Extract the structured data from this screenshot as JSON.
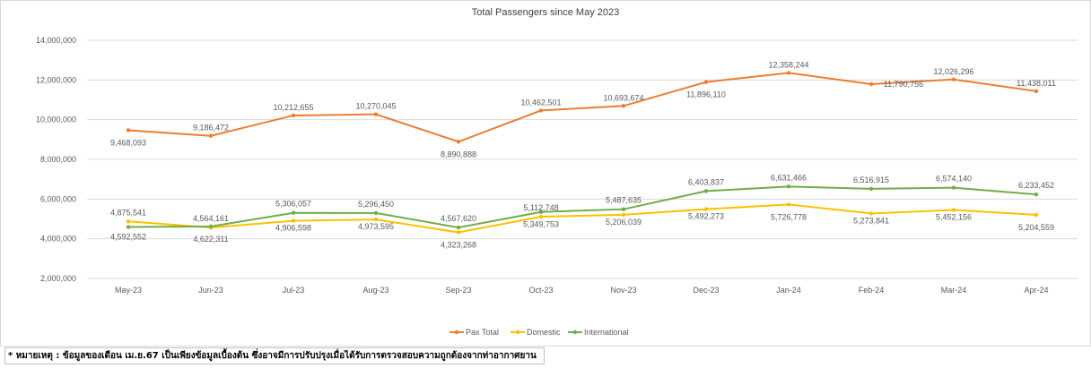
{
  "chart_data": {
    "type": "line",
    "title": "Total Passengers since May 2023",
    "xlabel": "",
    "ylabel": "",
    "categories": [
      "May-23",
      "Jun-23",
      "Jul-23",
      "Aug-23",
      "Sep-23",
      "Oct-23",
      "Nov-23",
      "Dec-23",
      "Jan-24",
      "Feb-24",
      "Mar-24",
      "Apr-24"
    ],
    "ylim": [
      2000000,
      14000000
    ],
    "yticks": [
      2000000,
      4000000,
      6000000,
      8000000,
      10000000,
      12000000,
      14000000
    ],
    "ytick_labels": [
      "2,000,000",
      "4,000,000",
      "6,000,000",
      "8,000,000",
      "10,000,000",
      "12,000,000",
      "14,000,000"
    ],
    "grid": "horizontal",
    "legend_position": "bottom",
    "series": [
      {
        "name": "Pax Total",
        "color": "#ED7D31",
        "values": [
          9468093,
          9186472,
          10212655,
          10270045,
          8890888,
          10462501,
          10693674,
          11896110,
          12358244,
          11790756,
          12026296,
          11438011
        ],
        "labels": [
          "9,468,093",
          "9,186,472",
          "10,212,655",
          "10,270,045",
          "8,890,888",
          "10,462,501",
          "10,693,674",
          "11,896,110",
          "12,358,244",
          "11,790,756",
          "12,026,296",
          "11,438,011"
        ]
      },
      {
        "name": "Domestic",
        "color": "#FFC000",
        "values": [
          4875541,
          4564161,
          4906598,
          4973595,
          4323268,
          5112748,
          5206039,
          5492273,
          5726778,
          5273841,
          5452156,
          5204559
        ],
        "labels": [
          "4,875,541",
          "4,564,161",
          "4,906,598",
          "4,973,595",
          "4,323,268",
          "5,112,748",
          "5,206,039",
          "5,492,273",
          "5,726,778",
          "5,273,841",
          "5,452,156",
          "5,204,559"
        ]
      },
      {
        "name": "International",
        "color": "#70AD47",
        "values": [
          4592552,
          4622311,
          5306057,
          5296450,
          4567620,
          5349753,
          5487635,
          6403837,
          6631466,
          6516915,
          6574140,
          6233452
        ],
        "labels": [
          "4,592,552",
          "4,622,311",
          "5,306,057",
          "5,296,450",
          "4,567,620",
          "5,349,753",
          "5,487,635",
          "6,403,837",
          "6,631,466",
          "6,516,915",
          "6,574,140",
          "6,233,452"
        ]
      }
    ]
  },
  "note": "* หมายเหตุ : ข้อมูลของเดือน เม.ย.67 เป็นเพียงข้อมูลเบื้องต้น ซึ่งอาจมีการปรับปรุงเมื่อได้รับการตรวจสอบความถูกต้องจากท่าอากาศยาน"
}
